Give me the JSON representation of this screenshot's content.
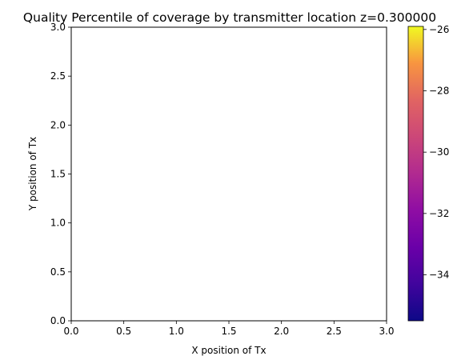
{
  "chart_data": {
    "type": "heatmap",
    "title": "Quality Percentile of coverage by transmitter location z=0.300000",
    "xlabel": "X position of Tx",
    "ylabel": "Y position of Tx",
    "xlim": [
      0.0,
      3.0
    ],
    "ylim": [
      0.0,
      3.0
    ],
    "x_ticks": [
      0.0,
      0.5,
      1.0,
      1.5,
      2.0,
      2.5,
      3.0
    ],
    "y_ticks": [
      0.0,
      0.5,
      1.0,
      1.5,
      2.0,
      2.5,
      3.0
    ],
    "x_tick_labels": [
      "0.0",
      "0.5",
      "1.0",
      "1.5",
      "2.0",
      "2.5",
      "3.0"
    ],
    "y_tick_labels": [
      "0.0",
      "0.5",
      "1.0",
      "1.5",
      "2.0",
      "2.5",
      "3.0"
    ],
    "grid": false,
    "cells": [],
    "colorbar": {
      "colormap": "plasma",
      "range": [
        -35.5,
        -25.9
      ],
      "ticks": [
        -34,
        -32,
        -30,
        -28,
        -26
      ],
      "tick_labels": [
        "−34",
        "−32",
        "−30",
        "−28",
        "−26"
      ]
    }
  }
}
